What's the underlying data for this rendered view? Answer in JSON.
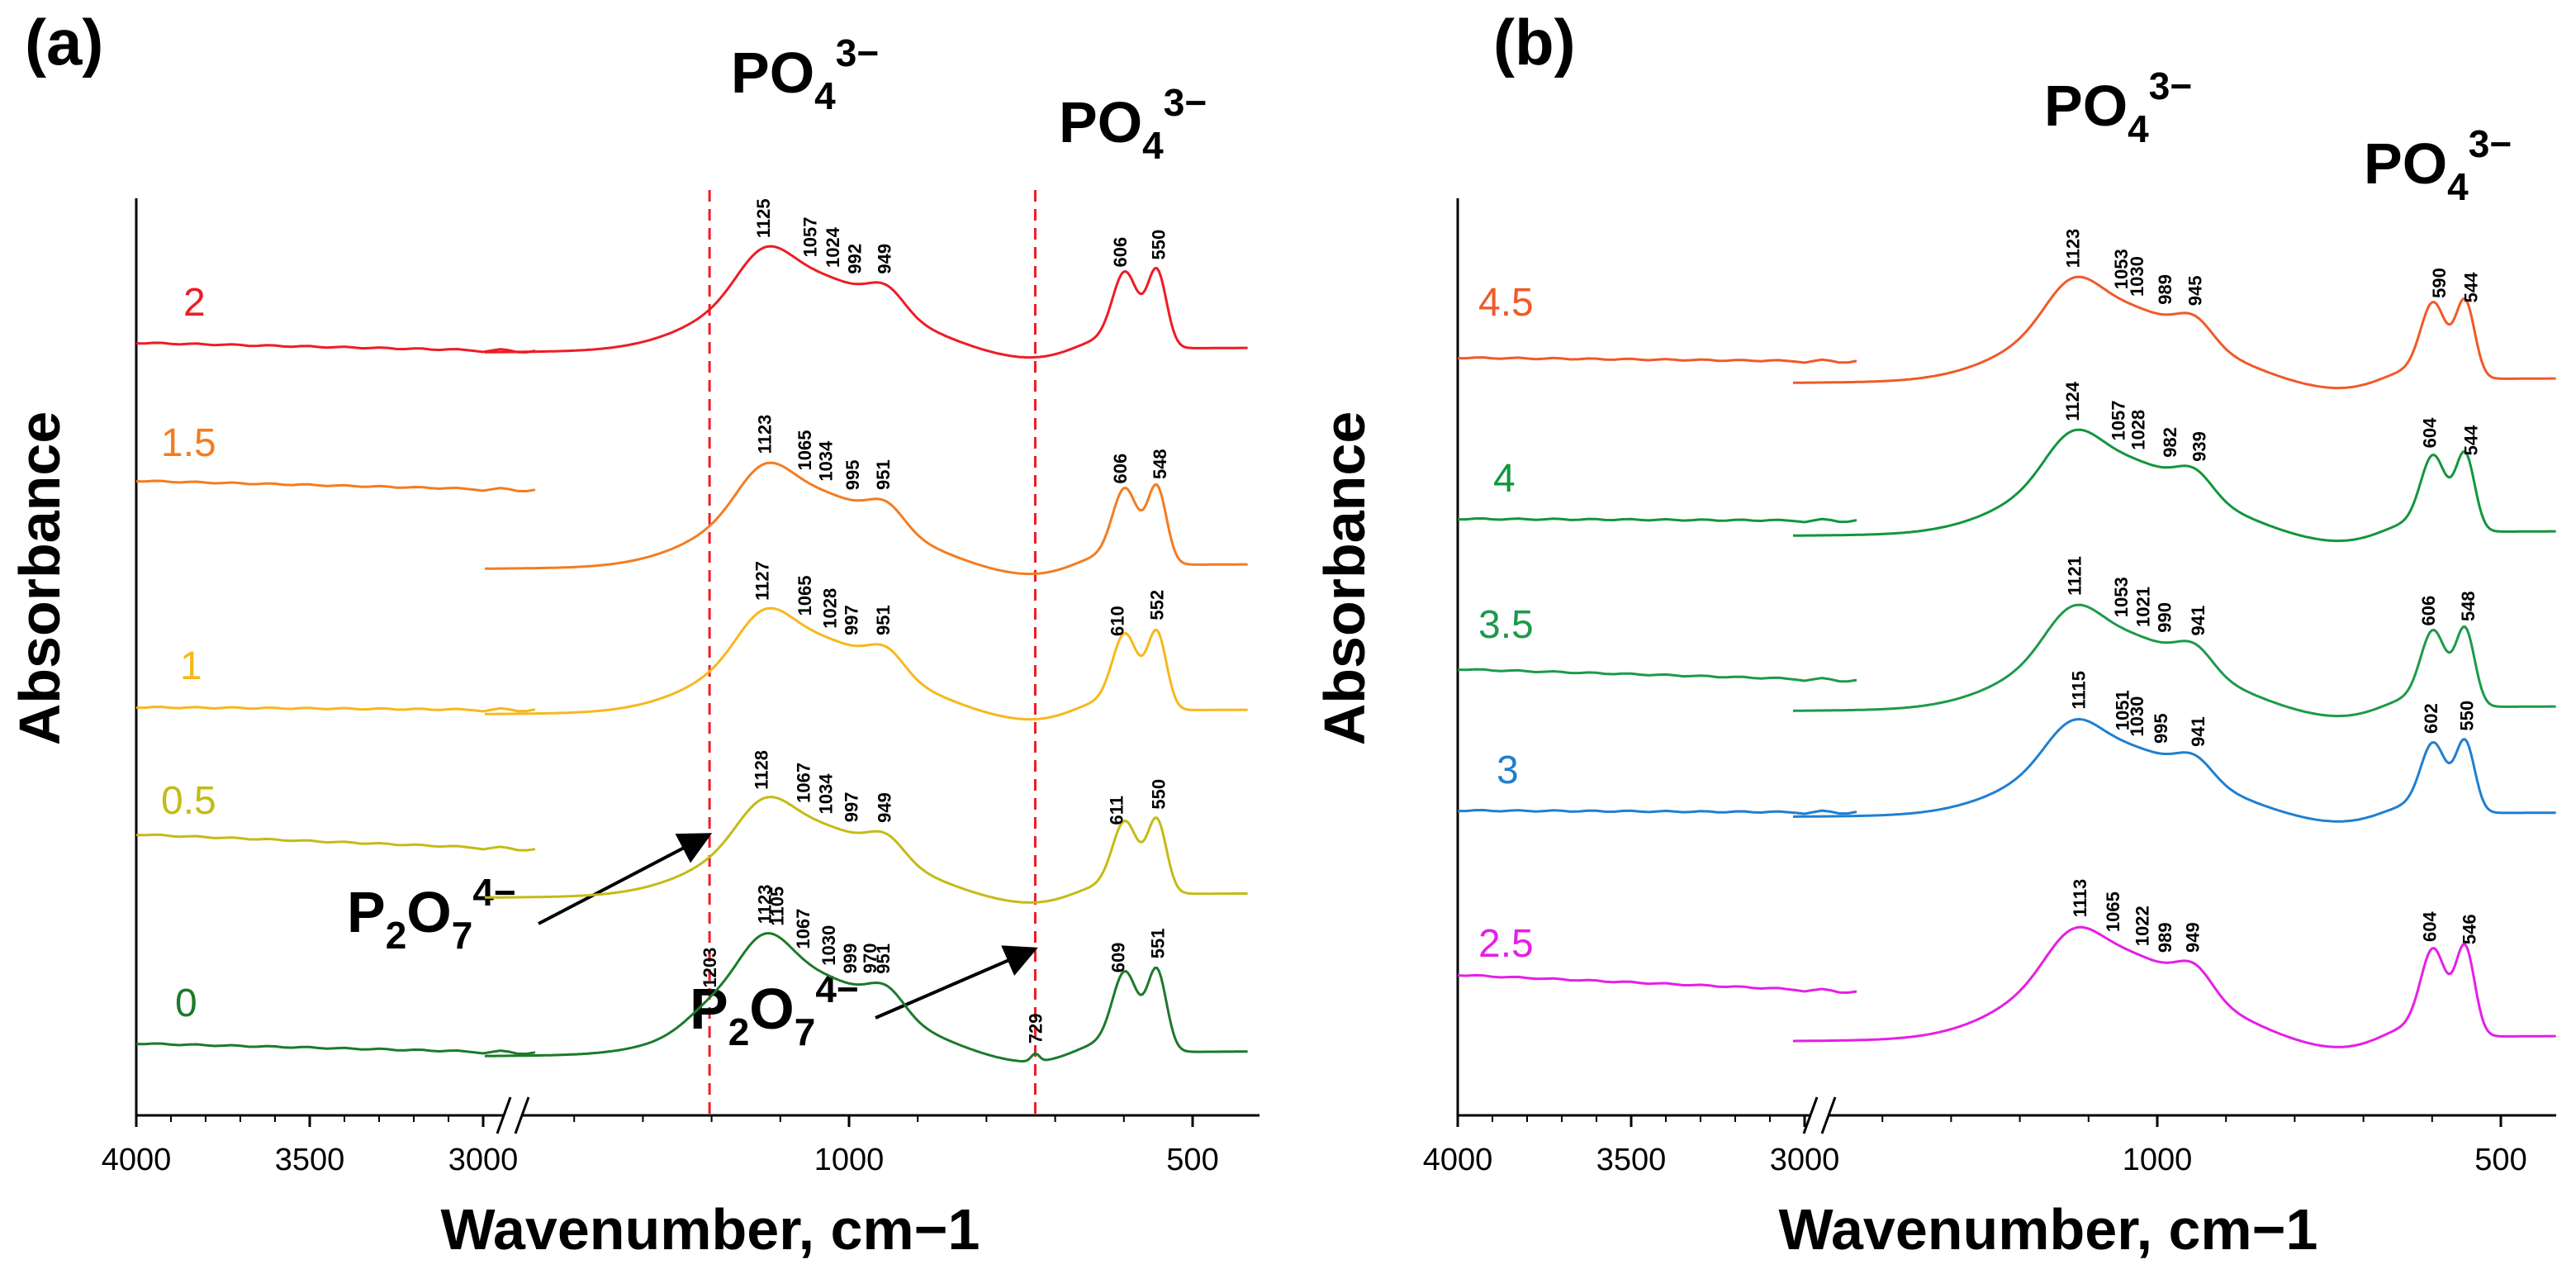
{
  "chart_data": [
    {
      "id": "a",
      "type": "line",
      "panel_label": "(a)",
      "xlabel": "Wavenumber, cm−1",
      "ylabel": "Absorbance",
      "x_ticks_left": [
        {
          "value": 4000,
          "label": "4000"
        },
        {
          "value": 3500,
          "label": "3500"
        },
        {
          "value": 3000,
          "label": "3000"
        }
      ],
      "x_ticks_right": [
        {
          "value": 1000,
          "label": "1000"
        },
        {
          "value": 500,
          "label": "500"
        }
      ],
      "axis_break": "between 2900 and 1500 cm−1",
      "band_labels": [
        {
          "main": "PO",
          "sub": "4",
          "sup": "3−",
          "near": 1050
        },
        {
          "main": "PO",
          "sub": "4",
          "sup": "3−",
          "near": 580
        }
      ],
      "pyrophosphate_labels": [
        {
          "main": "P",
          "sub1": "2",
          "mid": "O",
          "sub2": "7",
          "sup": "4−",
          "points_to": 1203
        },
        {
          "main": "P",
          "sub1": "2",
          "mid": "O",
          "sub2": "7",
          "sup": "4−",
          "points_to": 729
        }
      ],
      "dashed_markers": [
        1203,
        729
      ],
      "series": [
        {
          "name": "2",
          "color": "#ee1c25",
          "peaks": [
            "1125",
            "1057",
            "1024",
            "992",
            "949",
            "606",
            "550"
          ]
        },
        {
          "name": "1.5",
          "color": "#f47c20",
          "peaks": [
            "1123",
            "1065",
            "1034",
            "995",
            "951",
            "606",
            "548"
          ]
        },
        {
          "name": "1",
          "color": "#f7b81c",
          "peaks": [
            "1127",
            "1065",
            "1028",
            "997",
            "951",
            "610",
            "552"
          ]
        },
        {
          "name": "0.5",
          "color": "#c4bb16",
          "peaks": [
            "1128",
            "1067",
            "1034",
            "997",
            "949",
            "611",
            "550"
          ]
        },
        {
          "name": "0",
          "color": "#1c7a2a",
          "peaks": [
            "1203",
            "1123",
            "1105",
            "1067",
            "1030",
            "999",
            "970",
            "951",
            "729",
            "609",
            "551"
          ]
        }
      ]
    },
    {
      "id": "b",
      "type": "line",
      "panel_label": "(b)",
      "xlabel": "Wavenumber, cm−1",
      "ylabel": "Absorbance",
      "x_ticks_left": [
        {
          "value": 4000,
          "label": "4000"
        },
        {
          "value": 3500,
          "label": "3500"
        },
        {
          "value": 3000,
          "label": "3000"
        }
      ],
      "x_ticks_right": [
        {
          "value": 1000,
          "label": "1000"
        },
        {
          "value": 500,
          "label": "500"
        }
      ],
      "axis_break": "between 2900 and 1500 cm−1",
      "band_labels": [
        {
          "main": "PO",
          "sub": "4",
          "sup": "3−",
          "near": 1050
        },
        {
          "main": "PO",
          "sub": "4",
          "sup": "3−",
          "near": 560
        }
      ],
      "series": [
        {
          "name": "4.5",
          "color": "#f05a28",
          "peaks": [
            "1123",
            "1053",
            "1030",
            "989",
            "945",
            "590",
            "544"
          ]
        },
        {
          "name": "4",
          "color": "#12963c",
          "peaks": [
            "1124",
            "1057",
            "1028",
            "982",
            "939",
            "604",
            "544"
          ]
        },
        {
          "name": "3.5",
          "color": "#1c9a4a",
          "peaks": [
            "1121",
            "1053",
            "1021",
            "990",
            "941",
            "606",
            "548"
          ]
        },
        {
          "name": "3",
          "color": "#1f7fd0",
          "peaks": [
            "1115",
            "1051",
            "1030",
            "995",
            "941",
            "602",
            "550"
          ]
        },
        {
          "name": "2.5",
          "color": "#e61ee6",
          "peaks": [
            "1113",
            "1065",
            "1022",
            "989",
            "949",
            "604",
            "546"
          ]
        }
      ]
    }
  ]
}
